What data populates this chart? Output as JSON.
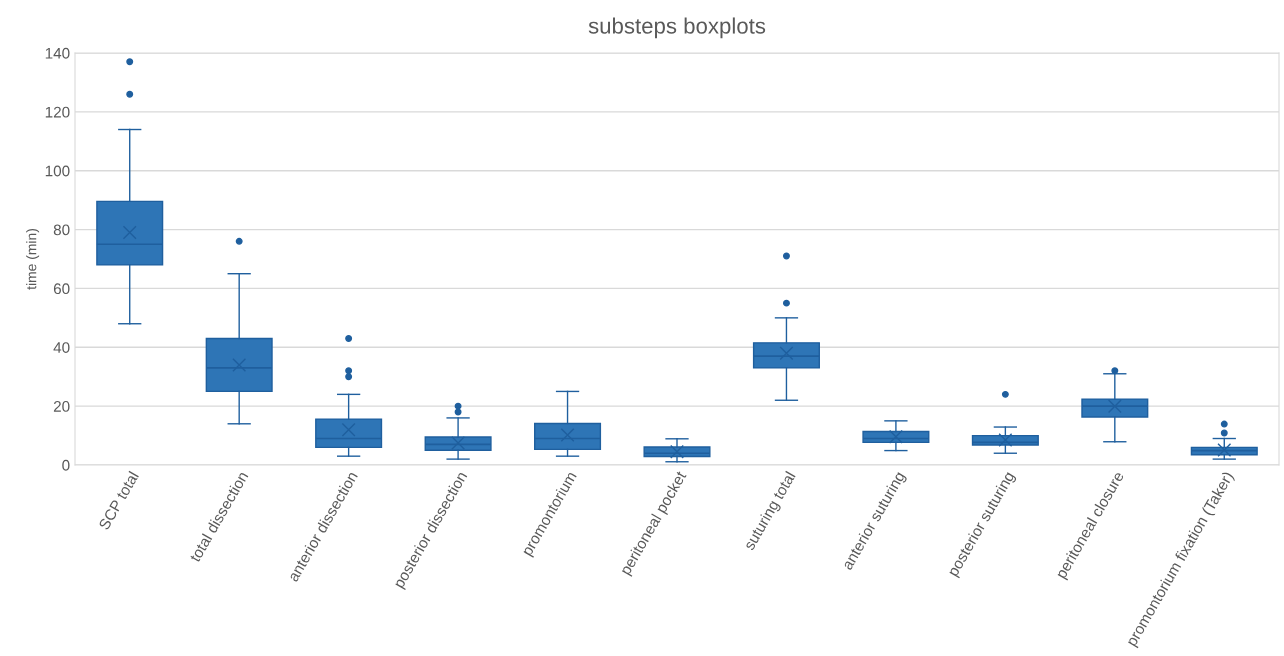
{
  "chart_data": {
    "type": "box",
    "title": "substeps boxplots",
    "ylabel": "time (min)",
    "categories": [
      "SCP total",
      "total dissection",
      "anterior dissection",
      "posterior dissection",
      "promontorium",
      "peritoneal pocket",
      "suturing total",
      "anterior suturing",
      "posterior suturing",
      "peritoneal closure",
      "promontorium fixation (Taker)"
    ],
    "color": "#2e75b6",
    "boxes": [
      {
        "low": 48,
        "q1": 68,
        "median": 75,
        "q3": 89.6,
        "high": 114,
        "mean": 79,
        "outliers": [
          137,
          126
        ]
      },
      {
        "low": 14,
        "q1": 25,
        "median": 33,
        "q3": 43,
        "high": 65,
        "mean": 34,
        "outliers": [
          76
        ]
      },
      {
        "low": 3,
        "q1": 6,
        "median": 9,
        "q3": 15.6,
        "high": 24,
        "mean": 12,
        "outliers": [
          43,
          32,
          30
        ]
      },
      {
        "low": 2,
        "q1": 5,
        "median": 7,
        "q3": 9.5,
        "high": 16,
        "mean": 7.5,
        "outliers": [
          20,
          18
        ]
      },
      {
        "low": 3,
        "q1": 5.3,
        "median": 9,
        "q3": 14.1,
        "high": 25,
        "mean": 10.2
      },
      {
        "low": 1.1,
        "q1": 2.9,
        "median": 4,
        "q3": 6.1,
        "high": 8.9,
        "mean": 4.5
      },
      {
        "low": 22,
        "q1": 33,
        "median": 37,
        "q3": 41.5,
        "high": 50,
        "mean": 38,
        "outliers": [
          71,
          55
        ]
      },
      {
        "low": 4.9,
        "q1": 7.7,
        "median": 9,
        "q3": 11.4,
        "high": 15,
        "mean": 9.6
      },
      {
        "low": 4,
        "q1": 6.8,
        "median": 7.7,
        "q3": 10,
        "high": 12.9,
        "mean": 8.5,
        "outliers": [
          24
        ]
      },
      {
        "low": 7.9,
        "q1": 16.3,
        "median": 20,
        "q3": 22.4,
        "high": 31,
        "mean": 20,
        "outliers": [
          32
        ]
      },
      {
        "low": 2,
        "q1": 3.5,
        "median": 4.9,
        "q3": 6,
        "high": 9,
        "mean": 5.1,
        "outliers": [
          13.9,
          10.9
        ]
      }
    ],
    "ylim": [
      0,
      140
    ],
    "yticks": [
      0,
      20,
      40,
      60,
      80,
      100,
      120,
      140
    ],
    "grid": "y",
    "legend": false
  }
}
